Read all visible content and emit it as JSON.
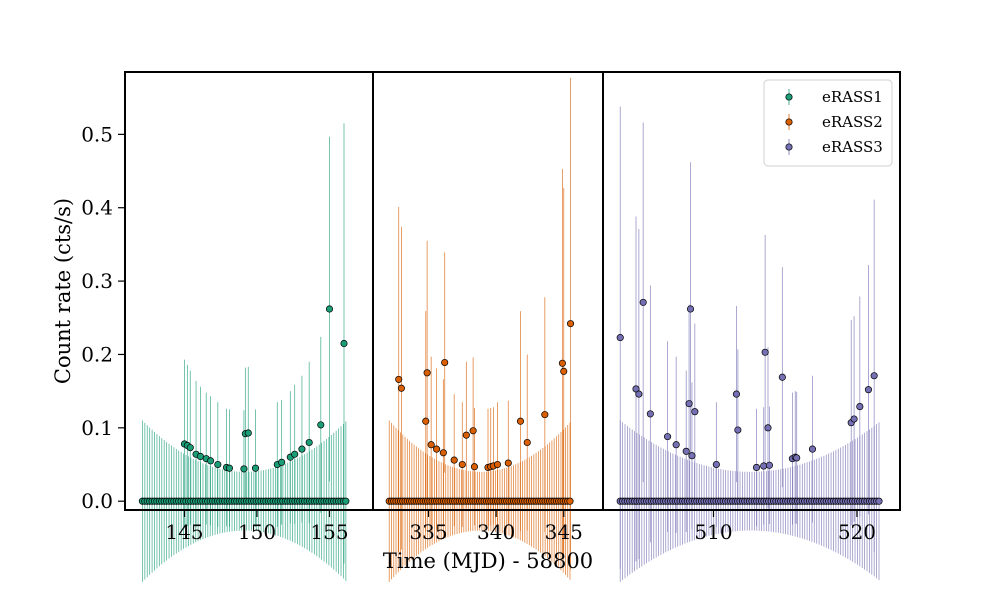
{
  "chart_data": {
    "type": "scatter",
    "ylabel": "Count rate (cts/s)",
    "xlabel": "Time (MJD) - 58800",
    "ylim": [
      -0.012,
      0.585
    ],
    "yticks": [
      0.0,
      0.1,
      0.2,
      0.3,
      0.4,
      0.5
    ],
    "ytick_labels": [
      "0.0",
      "0.1",
      "0.2",
      "0.3",
      "0.4",
      "0.5"
    ],
    "grid": false,
    "legend_position": "top-right",
    "panels": [
      {
        "series": "eRASS1",
        "xlim": [
          140.9,
          158.0
        ],
        "xticks": [
          145,
          150,
          155
        ],
        "xtick_labels": [
          "145",
          "150",
          "155"
        ],
        "zero_t_start": 142.1,
        "zero_t_end": 156.2,
        "zero_step": 0.167,
        "zero_err_base": 0.04,
        "zero_err_amp": 0.07,
        "points": [
          {
            "t": 145.0,
            "y": 0.078,
            "err": 0.115
          },
          {
            "t": 145.2,
            "y": 0.076,
            "err": 0.11
          },
          {
            "t": 145.4,
            "y": 0.073,
            "err": 0.105
          },
          {
            "t": 145.8,
            "y": 0.064,
            "err": 0.1
          },
          {
            "t": 146.1,
            "y": 0.061,
            "err": 0.095
          },
          {
            "t": 146.5,
            "y": 0.058,
            "err": 0.09
          },
          {
            "t": 146.8,
            "y": 0.055,
            "err": 0.088
          },
          {
            "t": 147.3,
            "y": 0.05,
            "err": 0.085
          },
          {
            "t": 147.9,
            "y": 0.046,
            "err": 0.08
          },
          {
            "t": 148.1,
            "y": 0.045,
            "err": 0.08
          },
          {
            "t": 149.1,
            "y": 0.044,
            "err": 0.08
          },
          {
            "t": 149.2,
            "y": 0.092,
            "err": 0.09
          },
          {
            "t": 149.4,
            "y": 0.093,
            "err": 0.09
          },
          {
            "t": 149.9,
            "y": 0.045,
            "err": 0.08
          },
          {
            "t": 151.4,
            "y": 0.05,
            "err": 0.085
          },
          {
            "t": 151.7,
            "y": 0.053,
            "err": 0.085
          },
          {
            "t": 152.3,
            "y": 0.06,
            "err": 0.09
          },
          {
            "t": 152.6,
            "y": 0.064,
            "err": 0.095
          },
          {
            "t": 153.1,
            "y": 0.071,
            "err": 0.1
          },
          {
            "t": 153.6,
            "y": 0.08,
            "err": 0.11
          },
          {
            "t": 154.4,
            "y": 0.104,
            "err": 0.12
          },
          {
            "t": 155.0,
            "y": 0.262,
            "err": 0.235
          },
          {
            "t": 156.0,
            "y": 0.215,
            "err": 0.3
          }
        ]
      },
      {
        "series": "eRASS2",
        "xlim": [
          330.9,
          347.9
        ],
        "xticks": [
          335,
          340,
          345
        ],
        "xtick_labels": [
          "335",
          "340",
          "345"
        ],
        "zero_t_start": 332.1,
        "zero_t_end": 345.6,
        "zero_step": 0.167,
        "zero_err_base": 0.04,
        "zero_err_amp": 0.07,
        "points": [
          {
            "t": 332.8,
            "y": 0.166,
            "err": 0.235
          },
          {
            "t": 333.0,
            "y": 0.154,
            "err": 0.22
          },
          {
            "t": 334.8,
            "y": 0.109,
            "err": 0.15
          },
          {
            "t": 334.9,
            "y": 0.175,
            "err": 0.18
          },
          {
            "t": 335.2,
            "y": 0.077,
            "err": 0.12
          },
          {
            "t": 335.6,
            "y": 0.071,
            "err": 0.11
          },
          {
            "t": 336.1,
            "y": 0.066,
            "err": 0.1
          },
          {
            "t": 336.2,
            "y": 0.189,
            "err": 0.15
          },
          {
            "t": 336.9,
            "y": 0.056,
            "err": 0.09
          },
          {
            "t": 337.5,
            "y": 0.05,
            "err": 0.085
          },
          {
            "t": 337.8,
            "y": 0.09,
            "err": 0.1
          },
          {
            "t": 338.3,
            "y": 0.096,
            "err": 0.1
          },
          {
            "t": 338.4,
            "y": 0.047,
            "err": 0.08
          },
          {
            "t": 339.4,
            "y": 0.046,
            "err": 0.08
          },
          {
            "t": 339.6,
            "y": 0.047,
            "err": 0.08
          },
          {
            "t": 339.8,
            "y": 0.048,
            "err": 0.08
          },
          {
            "t": 340.1,
            "y": 0.05,
            "err": 0.085
          },
          {
            "t": 340.9,
            "y": 0.052,
            "err": 0.085
          },
          {
            "t": 341.8,
            "y": 0.109,
            "err": 0.15
          },
          {
            "t": 342.3,
            "y": 0.08,
            "err": 0.12
          },
          {
            "t": 343.6,
            "y": 0.118,
            "err": 0.16
          },
          {
            "t": 344.9,
            "y": 0.188,
            "err": 0.265
          },
          {
            "t": 345.0,
            "y": 0.177,
            "err": 0.25
          },
          {
            "t": 345.5,
            "y": 0.242,
            "err": 0.335
          }
        ]
      },
      {
        "series": "eRASS3",
        "xlim": [
          502.3,
          523.0
        ],
        "xticks": [
          510,
          520
        ],
        "xtick_labels": [
          "510",
          "520"
        ],
        "zero_t_start": 503.5,
        "zero_t_end": 521.7,
        "zero_step": 0.167,
        "zero_err_base": 0.04,
        "zero_err_amp": 0.07,
        "points": [
          {
            "t": 503.5,
            "y": 0.223,
            "err": 0.315
          },
          {
            "t": 504.6,
            "y": 0.153,
            "err": 0.235
          },
          {
            "t": 504.8,
            "y": 0.146,
            "err": 0.225
          },
          {
            "t": 505.1,
            "y": 0.271,
            "err": 0.245
          },
          {
            "t": 505.6,
            "y": 0.119,
            "err": 0.175
          },
          {
            "t": 506.8,
            "y": 0.088,
            "err": 0.13
          },
          {
            "t": 507.4,
            "y": 0.077,
            "err": 0.12
          },
          {
            "t": 508.1,
            "y": 0.068,
            "err": 0.11
          },
          {
            "t": 508.3,
            "y": 0.133,
            "err": 0.135
          },
          {
            "t": 508.4,
            "y": 0.262,
            "err": 0.2
          },
          {
            "t": 508.5,
            "y": 0.062,
            "err": 0.1
          },
          {
            "t": 508.7,
            "y": 0.122,
            "err": 0.12
          },
          {
            "t": 510.2,
            "y": 0.05,
            "err": 0.085
          },
          {
            "t": 511.6,
            "y": 0.146,
            "err": 0.12
          },
          {
            "t": 511.7,
            "y": 0.097,
            "err": 0.11
          },
          {
            "t": 513.0,
            "y": 0.046,
            "err": 0.08
          },
          {
            "t": 513.5,
            "y": 0.048,
            "err": 0.08
          },
          {
            "t": 513.6,
            "y": 0.203,
            "err": 0.16
          },
          {
            "t": 513.8,
            "y": 0.1,
            "err": 0.11
          },
          {
            "t": 513.9,
            "y": 0.049,
            "err": 0.08
          },
          {
            "t": 514.8,
            "y": 0.169,
            "err": 0.15
          },
          {
            "t": 515.5,
            "y": 0.058,
            "err": 0.09
          },
          {
            "t": 515.7,
            "y": 0.06,
            "err": 0.09
          },
          {
            "t": 515.8,
            "y": 0.059,
            "err": 0.09
          },
          {
            "t": 516.9,
            "y": 0.071,
            "err": 0.1
          },
          {
            "t": 519.6,
            "y": 0.107,
            "err": 0.14
          },
          {
            "t": 519.8,
            "y": 0.112,
            "err": 0.14
          },
          {
            "t": 520.2,
            "y": 0.129,
            "err": 0.15
          },
          {
            "t": 520.8,
            "y": 0.152,
            "err": 0.17
          },
          {
            "t": 521.2,
            "y": 0.171,
            "err": 0.24
          }
        ]
      }
    ]
  },
  "legend": [
    {
      "name": "eRASS1",
      "color": "#1b9e77"
    },
    {
      "name": "eRASS2",
      "color": "#d95f02"
    },
    {
      "name": "eRASS3",
      "color": "#7570b3"
    }
  ]
}
